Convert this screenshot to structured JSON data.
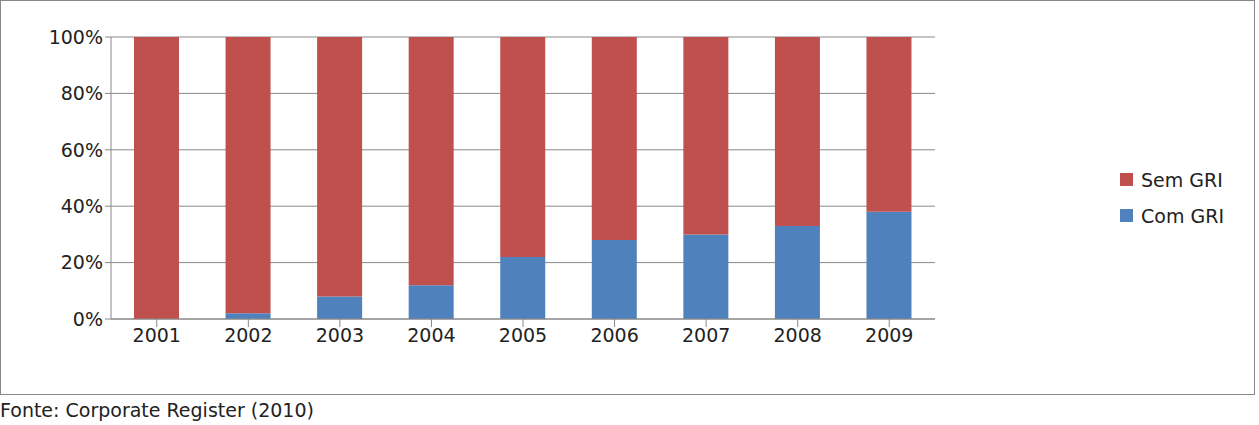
{
  "chart_data": {
    "type": "bar",
    "stacked": true,
    "categories": [
      "2001",
      "2002",
      "2003",
      "2004",
      "2005",
      "2006",
      "2007",
      "2008",
      "2009"
    ],
    "series": [
      {
        "name": "Com GRI",
        "color": "#4f81bd",
        "values": [
          0,
          2,
          8,
          12,
          22,
          28,
          30,
          33,
          38
        ]
      },
      {
        "name": "Sem GRI",
        "color": "#c0504d",
        "values": [
          100,
          98,
          92,
          88,
          78,
          72,
          70,
          67,
          62
        ]
      }
    ],
    "ylim": [
      0,
      100
    ],
    "yticks": [
      {
        "value": 0,
        "label": "0%"
      },
      {
        "value": 20,
        "label": "20%"
      },
      {
        "value": 40,
        "label": "40%"
      },
      {
        "value": 60,
        "label": "60%"
      },
      {
        "value": 80,
        "label": "80%"
      },
      {
        "value": 100,
        "label": "100%"
      }
    ],
    "grid": true,
    "legend": "right",
    "source": "Fonte: Corporate Register (2010)"
  }
}
